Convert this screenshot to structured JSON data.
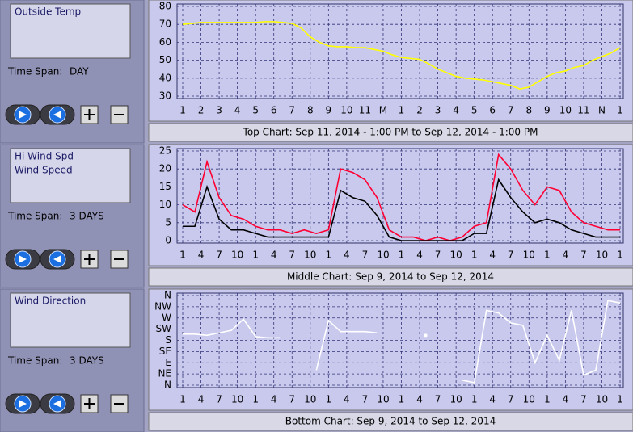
{
  "panels": [
    {
      "time_span_label": "Time Span:",
      "time_span": "DAY",
      "caption": "Top Chart:  Sep 11, 2014 - 1:00 PM  to  Sep 12, 2014 - 1:00 PM",
      "chart_data": {
        "type": "line",
        "grid": true,
        "x": [
          0,
          0.5,
          1,
          1.5,
          2,
          2.5,
          3,
          3.5,
          4,
          4.5,
          5,
          5.5,
          6,
          6.5,
          7,
          7.5,
          8,
          8.5,
          9,
          9.5,
          10,
          10.5,
          11,
          11.5,
          12,
          12.5,
          13,
          13.5,
          14,
          14.5,
          15,
          15.5,
          16,
          16.5,
          17,
          17.5,
          18,
          18.5,
          19,
          19.5,
          20,
          20.5,
          21,
          21.5,
          22,
          22.5,
          23,
          23.5,
          24
        ],
        "series": [
          {
            "name": "Outside Temp",
            "color": "#ffff00",
            "values": [
              70,
              70.5,
              71,
              71,
              71,
              71,
              71,
              71,
              71,
              71.5,
              71.5,
              71,
              70.5,
              68,
              63,
              60,
              58,
              57.5,
              57.5,
              57,
              57,
              56,
              55,
              53,
              51.5,
              51,
              50.5,
              48,
              45,
              43,
              41,
              40,
              39.5,
              39,
              38,
              37,
              36,
              34,
              35,
              38,
              41,
              43,
              44,
              46,
              47,
              50,
              52,
              54,
              57
            ]
          }
        ],
        "xlim": [
          0,
          24
        ],
        "xticks": [
          {
            "value": 0,
            "label": "1"
          },
          {
            "value": 1,
            "label": "2"
          },
          {
            "value": 2,
            "label": "3"
          },
          {
            "value": 3,
            "label": "4"
          },
          {
            "value": 4,
            "label": "5"
          },
          {
            "value": 5,
            "label": "6"
          },
          {
            "value": 6,
            "label": "7"
          },
          {
            "value": 7,
            "label": "8"
          },
          {
            "value": 8,
            "label": "9"
          },
          {
            "value": 9,
            "label": "10"
          },
          {
            "value": 10,
            "label": "11"
          },
          {
            "value": 11,
            "label": "M"
          },
          {
            "value": 12,
            "label": "1"
          },
          {
            "value": 13,
            "label": "2"
          },
          {
            "value": 14,
            "label": "3"
          },
          {
            "value": 15,
            "label": "4"
          },
          {
            "value": 16,
            "label": "5"
          },
          {
            "value": 17,
            "label": "6"
          },
          {
            "value": 18,
            "label": "7"
          },
          {
            "value": 19,
            "label": "8"
          },
          {
            "value": 20,
            "label": "9"
          },
          {
            "value": 21,
            "label": "10"
          },
          {
            "value": 22,
            "label": "11"
          },
          {
            "value": 23,
            "label": "N"
          },
          {
            "value": 24,
            "label": "1"
          }
        ],
        "ylim": [
          30,
          80
        ],
        "yticks": [
          30,
          40,
          50,
          60,
          70,
          80
        ]
      }
    },
    {
      "time_span_label": "Time Span:",
      "time_span": "3 DAYS",
      "caption": "Middle Chart:  Sep 9, 2014  to  Sep 12, 2014",
      "chart_data": {
        "type": "line",
        "grid": true,
        "x": [
          0,
          2,
          4,
          6,
          8,
          10,
          12,
          14,
          16,
          18,
          20,
          22,
          24,
          26,
          28,
          30,
          32,
          34,
          36,
          38,
          40,
          42,
          44,
          46,
          48,
          50,
          52,
          54,
          56,
          58,
          60,
          62,
          64,
          66,
          68,
          70,
          72
        ],
        "series": [
          {
            "name": "Hi Wind Spd",
            "color": "#ff0033",
            "values": [
              10,
              8,
              22,
              12,
              7,
              6,
              4,
              3,
              3,
              2,
              3,
              2,
              3,
              20,
              19,
              17,
              12,
              3,
              1,
              1,
              0,
              1,
              0,
              1,
              4,
              5,
              24,
              20,
              14,
              10,
              15,
              14,
              8,
              5,
              4,
              3,
              3
            ]
          },
          {
            "name": "Wind Speed",
            "color": "#000000",
            "values": [
              4,
              4,
              15,
              6,
              3,
              3,
              2,
              1,
              1,
              1,
              1,
              1,
              1,
              14,
              12,
              11,
              7,
              1,
              0,
              0,
              0,
              0,
              0,
              0,
              2,
              2,
              17,
              12,
              8,
              5,
              6,
              5,
              3,
              2,
              1,
              1,
              1
            ]
          }
        ],
        "xlim": [
          0,
          72
        ],
        "xticks": [
          {
            "value": 0,
            "label": "1"
          },
          {
            "value": 3,
            "label": "4"
          },
          {
            "value": 6,
            "label": "7"
          },
          {
            "value": 9,
            "label": "10"
          },
          {
            "value": 12,
            "label": "1"
          },
          {
            "value": 15,
            "label": "4"
          },
          {
            "value": 18,
            "label": "7"
          },
          {
            "value": 21,
            "label": "10"
          },
          {
            "value": 24,
            "label": "1"
          },
          {
            "value": 27,
            "label": "4"
          },
          {
            "value": 30,
            "label": "7"
          },
          {
            "value": 33,
            "label": "10"
          },
          {
            "value": 36,
            "label": "1"
          },
          {
            "value": 39,
            "label": "4"
          },
          {
            "value": 42,
            "label": "7"
          },
          {
            "value": 45,
            "label": "10"
          },
          {
            "value": 48,
            "label": "1"
          },
          {
            "value": 51,
            "label": "4"
          },
          {
            "value": 54,
            "label": "7"
          },
          {
            "value": 57,
            "label": "10"
          },
          {
            "value": 60,
            "label": "1"
          },
          {
            "value": 63,
            "label": "4"
          },
          {
            "value": 66,
            "label": "7"
          },
          {
            "value": 69,
            "label": "10"
          },
          {
            "value": 72,
            "label": "1"
          }
        ],
        "ylim": [
          0,
          25
        ],
        "yticks": [
          0,
          5,
          10,
          15,
          20,
          25
        ]
      }
    },
    {
      "time_span_label": "Time Span:",
      "time_span": "3 DAYS",
      "caption": "Bottom Chart:  Sep 9, 2014  to  Sep 12, 2014",
      "chart_data": {
        "type": "line",
        "grid": true,
        "x": [
          0,
          2,
          4,
          6,
          8,
          10,
          12,
          14,
          16,
          18,
          20,
          22,
          24,
          26,
          28,
          30,
          32,
          34,
          36,
          38,
          40,
          42,
          44,
          46,
          48,
          50,
          52,
          54,
          56,
          58,
          60,
          62,
          64,
          66,
          68,
          70,
          72
        ],
        "series": [
          {
            "name": "Wind Direction",
            "color": "#ffffff",
            "values": [
              205,
              205,
              200,
              210,
              220,
              265,
              195,
              190,
              190,
              null,
              null,
              60,
              260,
              215,
              215,
              215,
              210,
              null,
              null,
              null,
              200,
              null,
              null,
              20,
              10,
              300,
              290,
              250,
              240,
              90,
              200,
              100,
              300,
              40,
              60,
              340,
              330
            ]
          }
        ],
        "xlim": [
          0,
          72
        ],
        "xticks": [
          {
            "value": 0,
            "label": "1"
          },
          {
            "value": 3,
            "label": "4"
          },
          {
            "value": 6,
            "label": "7"
          },
          {
            "value": 9,
            "label": "10"
          },
          {
            "value": 12,
            "label": "1"
          },
          {
            "value": 15,
            "label": "4"
          },
          {
            "value": 18,
            "label": "7"
          },
          {
            "value": 21,
            "label": "10"
          },
          {
            "value": 24,
            "label": "1"
          },
          {
            "value": 27,
            "label": "4"
          },
          {
            "value": 30,
            "label": "7"
          },
          {
            "value": 33,
            "label": "10"
          },
          {
            "value": 36,
            "label": "1"
          },
          {
            "value": 39,
            "label": "4"
          },
          {
            "value": 42,
            "label": "7"
          },
          {
            "value": 45,
            "label": "10"
          },
          {
            "value": 48,
            "label": "1"
          },
          {
            "value": 51,
            "label": "4"
          },
          {
            "value": 54,
            "label": "7"
          },
          {
            "value": 57,
            "label": "10"
          },
          {
            "value": 60,
            "label": "1"
          },
          {
            "value": 63,
            "label": "4"
          },
          {
            "value": 66,
            "label": "7"
          },
          {
            "value": 69,
            "label": "10"
          },
          {
            "value": 72,
            "label": "1"
          }
        ],
        "ylim": [
          0,
          360
        ],
        "yticks": [
          {
            "value": 0,
            "label": "N"
          },
          {
            "value": 45,
            "label": "NE"
          },
          {
            "value": 90,
            "label": "E"
          },
          {
            "value": 135,
            "label": "SE"
          },
          {
            "value": 180,
            "label": "S"
          },
          {
            "value": 225,
            "label": "SW"
          },
          {
            "value": 270,
            "label": "W"
          },
          {
            "value": 315,
            "label": "NW"
          },
          {
            "value": 360,
            "label": "N"
          }
        ]
      }
    }
  ]
}
